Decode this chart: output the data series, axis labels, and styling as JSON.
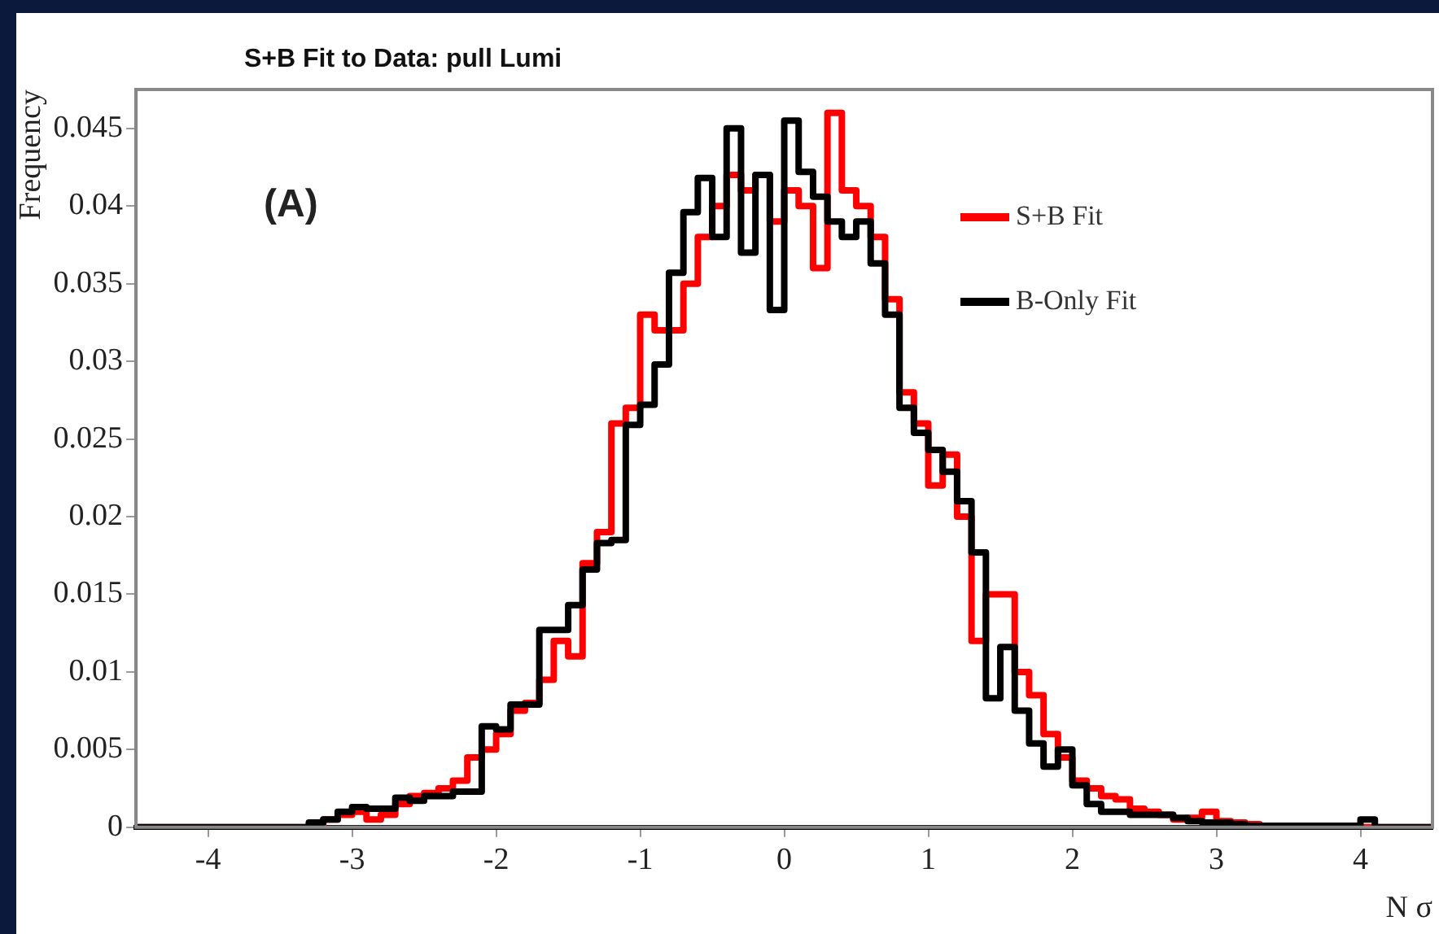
{
  "chart_data": {
    "type": "histogram",
    "title": "S+B Fit to Data: pull Lumi",
    "xlabel": "N σ",
    "ylabel": "Frequency",
    "annotations": [
      "(A)"
    ],
    "bins": [
      -4.5,
      -4.4,
      -4.3,
      -4.2,
      -4.1,
      -4.0,
      -3.9,
      -3.8,
      -3.7,
      -3.6,
      -3.5,
      -3.4,
      -3.3,
      -3.2,
      -3.1,
      -3.0,
      -2.9,
      -2.8,
      -2.7,
      -2.6,
      -2.5,
      -2.4,
      -2.3,
      -2.2,
      -2.1,
      -2.0,
      -1.9,
      -1.8,
      -1.7,
      -1.6,
      -1.5,
      -1.4,
      -1.3,
      -1.2,
      -1.1,
      -1.0,
      -0.9,
      -0.8,
      -0.7,
      -0.6,
      -0.5,
      -0.4,
      -0.3,
      -0.2,
      -0.1,
      0.0,
      0.1,
      0.2,
      0.3,
      0.4,
      0.5,
      0.6,
      0.7,
      0.8,
      0.9,
      1.0,
      1.1,
      1.2,
      1.3,
      1.4,
      1.5,
      1.6,
      1.7,
      1.8,
      1.9,
      2.0,
      2.1,
      2.2,
      2.3,
      2.4,
      2.5,
      2.6,
      2.7,
      2.8,
      2.9,
      3.0,
      3.1,
      3.2,
      3.3,
      3.4,
      3.5,
      3.6,
      3.7,
      3.8,
      3.9,
      4.0,
      4.1,
      4.2,
      4.3,
      4.4,
      4.5
    ],
    "series": [
      {
        "name": "S+B Fit",
        "color": "#ff0000",
        "values": [
          0,
          0,
          0,
          0,
          0,
          0,
          0,
          0,
          0,
          0,
          0,
          0,
          0.0002,
          0.0005,
          0.0008,
          0.001,
          0.0005,
          0.0008,
          0.0015,
          0.002,
          0.0022,
          0.0025,
          0.003,
          0.0045,
          0.005,
          0.006,
          0.0075,
          0.008,
          0.0095,
          0.012,
          0.011,
          0.017,
          0.019,
          0.026,
          0.027,
          0.033,
          0.032,
          0.032,
          0.035,
          0.038,
          0.04,
          0.042,
          0.041,
          0.042,
          0.039,
          0.041,
          0.04,
          0.036,
          0.046,
          0.041,
          0.04,
          0.038,
          0.034,
          0.028,
          0.026,
          0.022,
          0.024,
          0.02,
          0.012,
          0.015,
          0.015,
          0.01,
          0.0085,
          0.006,
          0.0045,
          0.003,
          0.0025,
          0.002,
          0.0018,
          0.0012,
          0.001,
          0.0008,
          0.0005,
          0.0006,
          0.001,
          0.0004,
          0.0003,
          0.0002,
          0.0001,
          0,
          0,
          0,
          0,
          0,
          0,
          0,
          0,
          0,
          0,
          0
        ]
      },
      {
        "name": "B-Only Fit",
        "color": "#000000",
        "values": [
          0,
          0,
          0,
          0,
          0,
          0,
          0,
          0,
          0,
          0,
          0,
          0,
          0.0003,
          0.0005,
          0.001,
          0.0013,
          0.0012,
          0.0012,
          0.0019,
          0.0017,
          0.002,
          0.002,
          0.0023,
          0.0023,
          0.0065,
          0.0063,
          0.0079,
          0.0079,
          0.0127,
          0.0127,
          0.0143,
          0.0166,
          0.0183,
          0.0185,
          0.0259,
          0.0272,
          0.0298,
          0.0357,
          0.0396,
          0.0418,
          0.038,
          0.045,
          0.037,
          0.042,
          0.0333,
          0.0455,
          0.0422,
          0.0406,
          0.039,
          0.038,
          0.039,
          0.0363,
          0.033,
          0.027,
          0.0254,
          0.0243,
          0.0229,
          0.021,
          0.0177,
          0.0083,
          0.0116,
          0.0075,
          0.0054,
          0.0039,
          0.005,
          0.0027,
          0.0015,
          0.001,
          0.001,
          0.0008,
          0.0008,
          0.0008,
          0.0006,
          0.0004,
          0.0003,
          0.0003,
          0.0002,
          0.0001,
          0.0001,
          0.0001,
          0.0001,
          0.0001,
          0.0001,
          0.0001,
          0.0001,
          0.0005,
          0,
          0,
          0,
          0
        ]
      }
    ],
    "xlim": [
      -4.5,
      4.5
    ],
    "xticks": [
      -4,
      -3,
      -2,
      -1,
      0,
      1,
      2,
      3,
      4
    ],
    "ylim": [
      0,
      0.0475
    ],
    "yticks": [
      0,
      0.005,
      0.01,
      0.015,
      0.02,
      0.025,
      0.03,
      0.035,
      0.04,
      0.045
    ],
    "grid": false,
    "legend": "top right",
    "line_style": "solid"
  }
}
